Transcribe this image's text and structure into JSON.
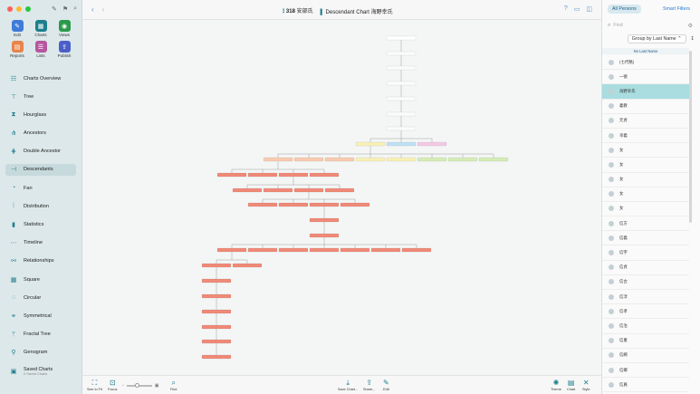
{
  "toolbar": {
    "chart_prefix": "318",
    "family": "安部氏",
    "chart_title": "Descendant Chart 海野幸氏"
  },
  "sidebar": {
    "tools": [
      {
        "label": "Edit",
        "icon": "edit-icon",
        "color": "#3f7bd9"
      },
      {
        "label": "Charts",
        "icon": "charts-icon",
        "color": "#1d7f8c"
      },
      {
        "label": "Views",
        "icon": "views-icon",
        "color": "#2a9a4a"
      },
      {
        "label": "Reports",
        "icon": "reports-icon",
        "color": "#e9834a"
      },
      {
        "label": "Lists",
        "icon": "lists-icon",
        "color": "#b5579e"
      },
      {
        "label": "Publish",
        "icon": "publish-icon",
        "color": "#4c5fc8"
      }
    ],
    "nav": [
      {
        "label": "Charts Overview",
        "icon": "charts-overview-icon"
      },
      {
        "label": "Tree",
        "icon": "tree-icon"
      },
      {
        "label": "Hourglass",
        "icon": "hourglass-icon"
      },
      {
        "label": "Ancestors",
        "icon": "ancestors-icon"
      },
      {
        "label": "Double Ancestor",
        "icon": "double-ancestor-icon"
      },
      {
        "label": "Descendants",
        "icon": "descendants-icon",
        "active": true
      },
      {
        "label": "Fan",
        "icon": "fan-icon"
      },
      {
        "label": "Distribution",
        "icon": "distribution-icon"
      },
      {
        "label": "Statistics",
        "icon": "statistics-icon"
      },
      {
        "label": "Timeline",
        "icon": "timeline-icon"
      },
      {
        "label": "Relationships",
        "icon": "relationships-icon"
      },
      {
        "label": "Square",
        "icon": "square-icon"
      },
      {
        "label": "Circular",
        "icon": "circular-icon"
      },
      {
        "label": "Symmetrical",
        "icon": "symmetrical-icon"
      },
      {
        "label": "Fractal Tree",
        "icon": "fractal-tree-icon"
      },
      {
        "label": "Genogram",
        "icon": "genogram-icon"
      }
    ],
    "saved": {
      "label": "Saved Charts",
      "sub": "0 Saved Charts"
    }
  },
  "bottom": {
    "size_to_fit": "Size to Fit",
    "focus": "Focus",
    "find": "Find",
    "save_chart": "Save Chart...",
    "share": "Share...",
    "edit": "Edit",
    "theme": "Theme",
    "chart": "Chart",
    "style": "Style"
  },
  "panel": {
    "tab_all": "All Persons",
    "tab_smart": "Smart Filters",
    "search_placeholder": "Find",
    "group_by": "Group by Last Name",
    "section_header": "No Last Name",
    "persons": [
      "(七代略)",
      "一徳",
      "海野幸氏",
      "義教",
      "元貞",
      "幸義",
      "女",
      "女",
      "女",
      "女",
      "女",
      "信方",
      "信義",
      "信宇",
      "信貞",
      "信古",
      "信淳",
      "信孝",
      "信治",
      "信重",
      "信綱",
      "信郷",
      "信員"
    ],
    "selected_index": 2
  },
  "colors": {
    "accent": "#1d7f8c",
    "link": "#2a7ad6",
    "selected_row": "#a9dde0",
    "box_red": "#f08a78",
    "box_peach": "#f8cbb0",
    "box_yellow": "#f7f0b6",
    "box_green": "#d4ecb6",
    "box_blue": "#bfe1f3",
    "box_pink": "#f3c9e6"
  }
}
